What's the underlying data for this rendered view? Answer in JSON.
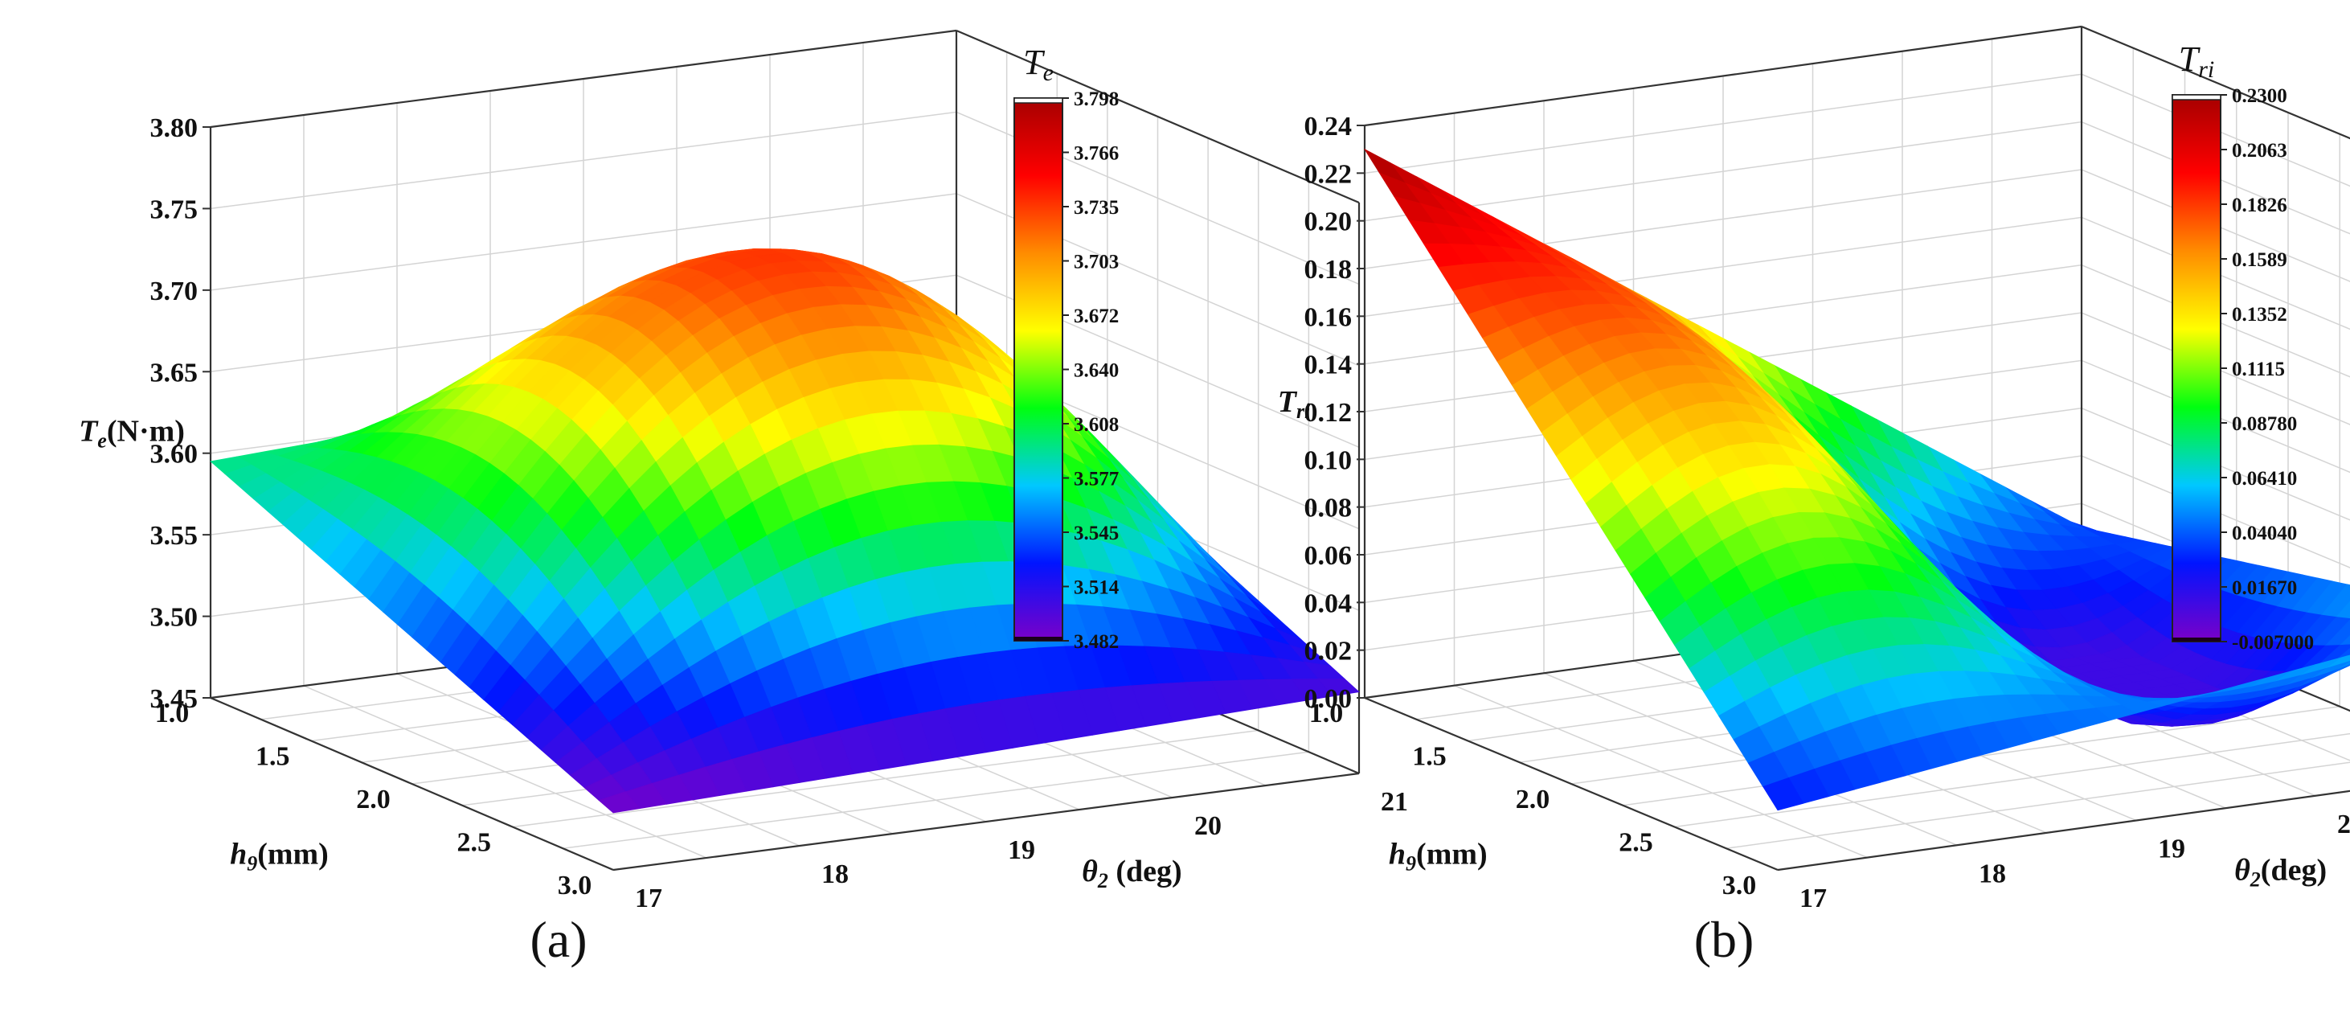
{
  "chart_data": [
    {
      "type": "surface",
      "panel_label": "(a)",
      "zlabel": "Te(N·m)",
      "zlabel_symbol": "T",
      "zlabel_sub": "e",
      "zlabel_unit": "(N·m)",
      "xlabel_symbol": "h",
      "xlabel_sub": "9",
      "xlabel_unit": "(mm)",
      "ylabel_symbol": "θ",
      "ylabel_sub": "2",
      "ylabel_unit": " (deg)",
      "x_ticks": [
        "1.0",
        "1.5",
        "2.0",
        "2.5",
        "3.0"
      ],
      "y_ticks": [
        "17",
        "18",
        "19",
        "20",
        "21"
      ],
      "z_ticks": [
        "3.45",
        "3.50",
        "3.55",
        "3.60",
        "3.65",
        "3.70",
        "3.75",
        "3.80"
      ],
      "xlim": [
        1.0,
        3.0
      ],
      "ylim": [
        17,
        21
      ],
      "zlim": [
        3.45,
        3.8
      ],
      "colorbar_title_symbol": "T",
      "colorbar_title_sub": "e",
      "colorbar_ticks": [
        "3.798",
        "3.766",
        "3.735",
        "3.703",
        "3.672",
        "3.640",
        "3.608",
        "3.577",
        "3.545",
        "3.514",
        "3.482"
      ],
      "colorbar_range": [
        3.482,
        3.798
      ],
      "corner_values": {
        "h1_t17": 3.595,
        "h3_t17": 3.485,
        "h1_t21": 3.618,
        "h3_t21": 3.5
      },
      "peak": {
        "h9": 2.0,
        "theta2": 19.0,
        "value": 3.795
      }
    },
    {
      "type": "surface",
      "panel_label": "(b)",
      "zlabel": "Tri",
      "zlabel_symbol": "T",
      "zlabel_sub": "ri",
      "zlabel_unit": "",
      "xlabel_symbol": "h",
      "xlabel_sub": "9",
      "xlabel_unit": "(mm)",
      "ylabel_symbol": "θ",
      "ylabel_sub": "2",
      "ylabel_unit": "(deg)",
      "x_ticks": [
        "1.0",
        "1.5",
        "2.0",
        "2.5",
        "3.0"
      ],
      "y_ticks": [
        "17",
        "18",
        "19",
        "20",
        "21"
      ],
      "z_ticks": [
        "0.00",
        "0.02",
        "0.04",
        "0.06",
        "0.08",
        "0.10",
        "0.12",
        "0.14",
        "0.16",
        "0.18",
        "0.20",
        "0.22",
        "0.24"
      ],
      "xlim": [
        1.0,
        3.0
      ],
      "ylim": [
        17,
        21
      ],
      "zlim": [
        0.0,
        0.24
      ],
      "colorbar_title_symbol": "T",
      "colorbar_title_sub": "ri",
      "colorbar_ticks": [
        "0.2300",
        "0.2063",
        "0.1826",
        "0.1589",
        "0.1352",
        "0.1115",
        "0.08780",
        "0.06410",
        "0.04040",
        "0.01670",
        "-0.007000"
      ],
      "colorbar_range": [
        -0.007,
        0.23
      ],
      "corner_values": {
        "h1_t17": 0.23,
        "h3_t17": 0.025,
        "h1_t21": 0.03,
        "h3_t21": 0.065
      }
    }
  ],
  "colors": {
    "colormap": [
      "#7b00c8",
      "#0014ff",
      "#00c8ff",
      "#00ff10",
      "#ffff00",
      "#ff8c00",
      "#ff0000",
      "#a50000"
    ],
    "axis": "#333333",
    "grid": "#d4d4d4"
  }
}
